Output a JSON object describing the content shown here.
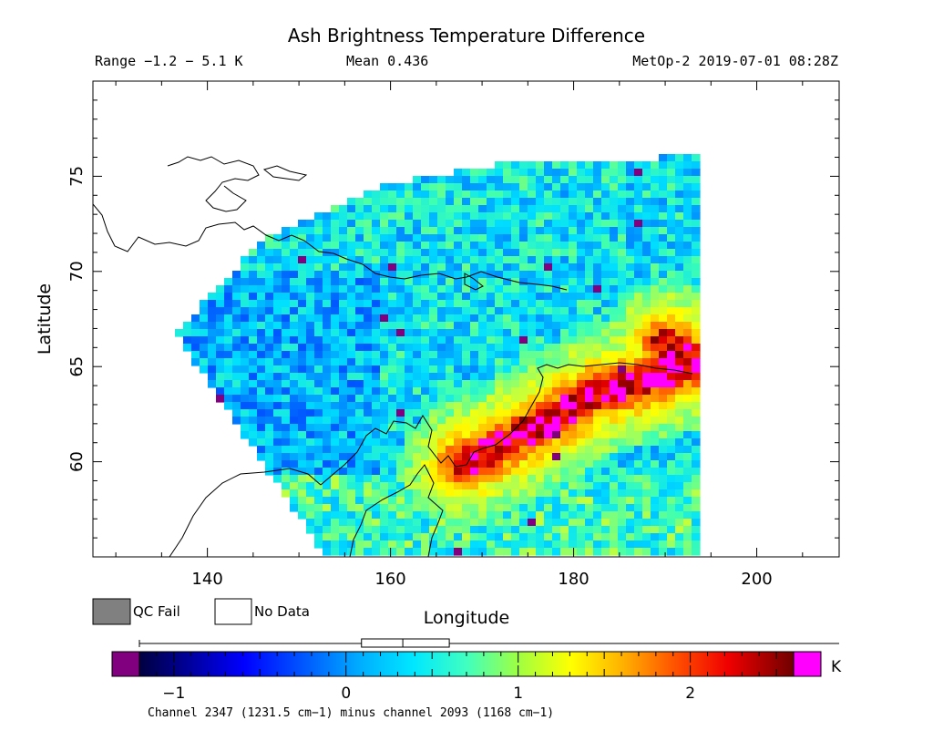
{
  "header": {
    "title": "Ash Brightness Temperature Difference",
    "range_text": "Range −1.2 − 5.1 K",
    "mean_text": "Mean 0.436",
    "satellite_time": "MetOp-2 2019-07-01 08:28Z"
  },
  "legend_keys": {
    "qc_fail": "QC Fail",
    "no_data": "No Data",
    "qc_fail_color": "#808080",
    "no_data_color": "#ffffff"
  },
  "colorbar": {
    "unit": "K",
    "ticks": [
      {
        "value": -1,
        "label": "−1"
      },
      {
        "value": 0,
        "label": "0"
      },
      {
        "value": 1,
        "label": "1"
      },
      {
        "value": 2,
        "label": "2"
      }
    ],
    "caption": "Channel 2347 (1231.5 cm−1) minus channel 2093 (1168 cm−1)",
    "range": [
      -1.2,
      2.6
    ],
    "under_color": "#800080",
    "over_color": "#ff00ff",
    "box_range": [
      0.09,
      0.6
    ],
    "box_median": 0.33
  },
  "chart_data": {
    "type": "heatmap",
    "title": "Ash Brightness Temperature Difference",
    "xlabel": "Longitude",
    "ylabel": "Latitude",
    "xlim": [
      127.5,
      209
    ],
    "ylim": [
      55,
      80
    ],
    "x_ticks": [
      140,
      160,
      180,
      200
    ],
    "y_ticks": [
      60,
      65,
      70,
      75
    ],
    "colorscale": [
      "#000040",
      "#0000c0",
      "#0050ff",
      "#00a0ff",
      "#00e0ff",
      "#40ffb0",
      "#c0ff40",
      "#ffff00",
      "#ffb000",
      "#ff5000",
      "#e00000",
      "#800000"
    ],
    "swath_edge": [
      {
        "lon": 153,
        "lat": 55
      },
      {
        "lon": 136.5,
        "lat": 66.7
      },
      {
        "lon": 146,
        "lat": 71.7
      },
      {
        "lon": 160,
        "lat": 74.6
      },
      {
        "lon": 175,
        "lat": 75.9
      },
      {
        "lon": 193.5,
        "lat": 76
      },
      {
        "lon": 194,
        "lat": 55
      }
    ],
    "ash_plume": [
      {
        "lon": 168,
        "lat": 59.9,
        "value": 2.5
      },
      {
        "lon": 176,
        "lat": 61.8,
        "value": 2.6
      },
      {
        "lon": 182,
        "lat": 63.5,
        "value": 2.6
      },
      {
        "lon": 188,
        "lat": 64.3,
        "value": 2.6
      },
      {
        "lon": 193.5,
        "lat": 65.2,
        "value": 2.6
      },
      {
        "lon": 190,
        "lat": 66.2,
        "value": 2.4
      },
      {
        "lon": 193.5,
        "lat": 66.5,
        "value": 2.3
      }
    ]
  }
}
